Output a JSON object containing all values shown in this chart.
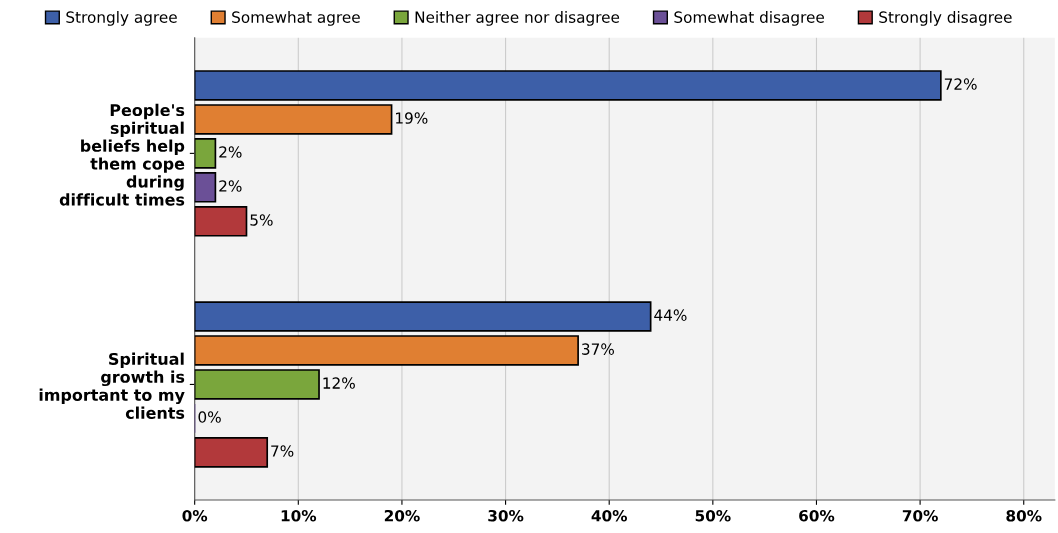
{
  "chart_data": {
    "type": "bar",
    "orientation": "horizontal",
    "categories": [
      "People's spiritual beliefs help them cope during difficult times",
      "Spiritual growth is important to my clients"
    ],
    "series": [
      {
        "name": "Strongly agree",
        "color": "#3d5fa8",
        "values": [
          72,
          44
        ],
        "value_labels": [
          "72%",
          "44%"
        ]
      },
      {
        "name": "Somewhat agree",
        "color": "#e07f32",
        "values": [
          19,
          37
        ],
        "value_labels": [
          "19%",
          "37%"
        ]
      },
      {
        "name": "Neither agree nor disagree",
        "color": "#7aa63c",
        "values": [
          2,
          12
        ],
        "value_labels": [
          "2%",
          "12%"
        ]
      },
      {
        "name": "Somewhat disagree",
        "color": "#6b5097",
        "values": [
          2,
          0
        ],
        "value_labels": [
          "2%",
          "0%"
        ]
      },
      {
        "name": "Strongly disagree",
        "color": "#b2393b",
        "values": [
          5,
          7
        ],
        "value_labels": [
          "5%",
          "7%"
        ]
      }
    ],
    "xlim": [
      0,
      83
    ],
    "xticks": [
      {
        "value": 0,
        "label": "0%"
      },
      {
        "value": 10,
        "label": "10%"
      },
      {
        "value": 20,
        "label": "20%"
      },
      {
        "value": 30,
        "label": "30%"
      },
      {
        "value": 40,
        "label": "40%"
      },
      {
        "value": 50,
        "label": "50%"
      },
      {
        "value": 60,
        "label": "60%"
      },
      {
        "value": 70,
        "label": "70%"
      },
      {
        "value": 80,
        "label": "80%"
      }
    ],
    "grid": "x",
    "legend": "top"
  }
}
